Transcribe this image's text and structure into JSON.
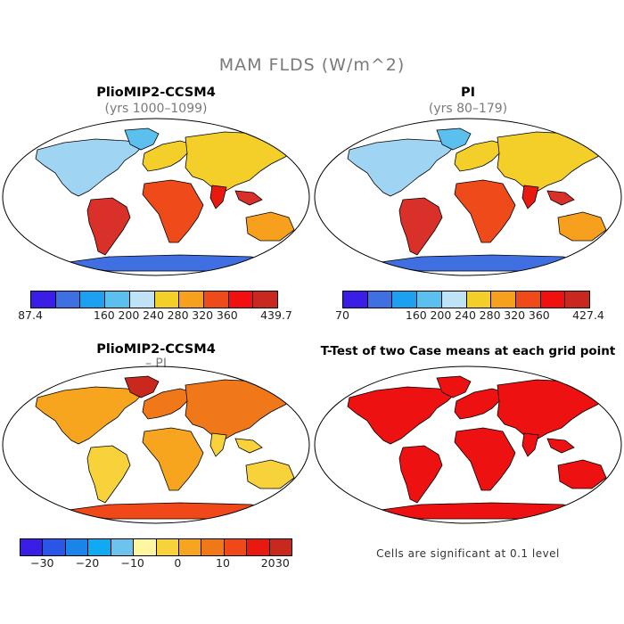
{
  "figure": {
    "title": "MAM FLDS (W/m^2)"
  },
  "panels": [
    {
      "title": "PlioMIP2-CCSM4",
      "subtitle": "(yrs 1000–1099)",
      "colorbar": {
        "colors": [
          "#3b1ee6",
          "#3f6fe0",
          "#1e9ff0",
          "#5cc0ef",
          "#bfe3f5",
          "#f4cf2a",
          "#f7a01e",
          "#ef4a1a",
          "#f01010",
          "#c8281e"
        ],
        "labels": [
          "87.4",
          "160",
          "200",
          "240",
          "280",
          "320",
          "360",
          "439.7"
        ]
      }
    },
    {
      "title": "PI",
      "subtitle": "(yrs 80–179)",
      "colorbar": {
        "colors": [
          "#3b1ee6",
          "#3f6fe0",
          "#1e9ff0",
          "#5cc0ef",
          "#bfe3f5",
          "#f4cf2a",
          "#f7a01e",
          "#ef4a1a",
          "#f01010",
          "#c8281e"
        ],
        "labels": [
          "70",
          "160",
          "200",
          "240",
          "280",
          "320",
          "360",
          "427.4"
        ]
      }
    },
    {
      "title": "PlioMIP2-CCSM4",
      "subtitle": "– PI",
      "colorbar": {
        "colors": [
          "#3b1ee6",
          "#2a55e6",
          "#1a84ea",
          "#10aaf0",
          "#6cc4ee",
          "#fff7a0",
          "#f8d23a",
          "#f7a41e",
          "#f07818",
          "#f04818",
          "#e81a10",
          "#c8281e"
        ],
        "labels": [
          "−30",
          "−20",
          "−10",
          "0",
          "10",
          "20",
          "30"
        ]
      }
    },
    {
      "title": "T-Test of two Case means at each grid point",
      "note": "Cells are significant at 0.1 level",
      "fill": "#ee1111"
    }
  ]
}
